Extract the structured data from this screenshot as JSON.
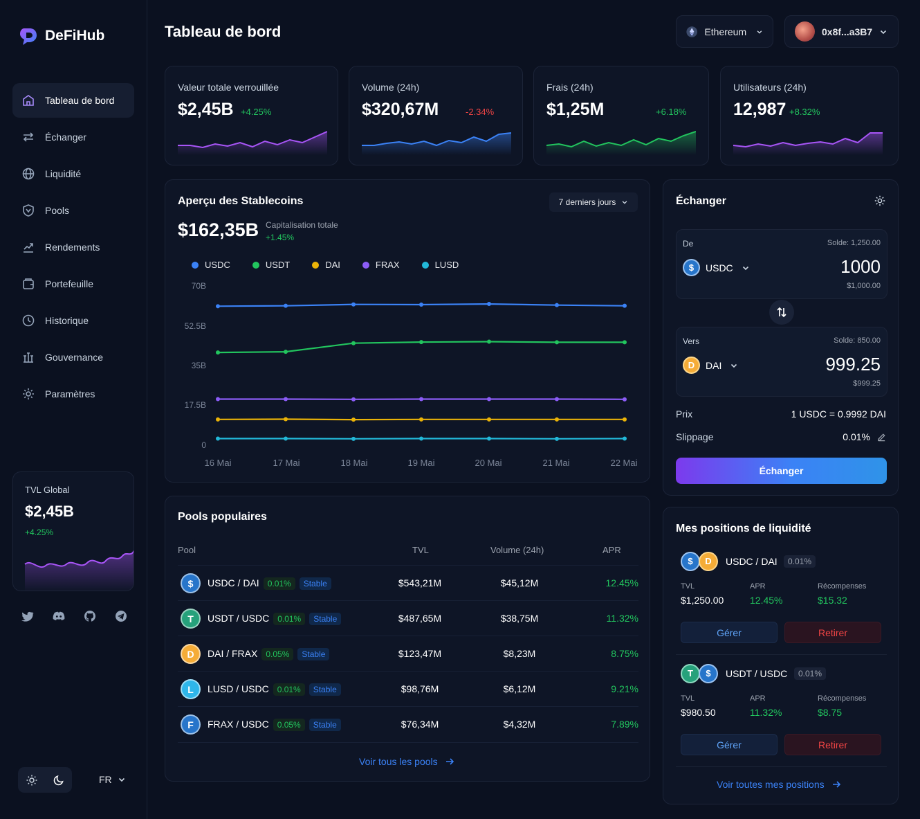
{
  "brand": {
    "name": "DeFiHub"
  },
  "page": {
    "title": "Tableau de bord"
  },
  "header": {
    "network": "Ethereum",
    "wallet": "0x8f...a3B7"
  },
  "nav": {
    "items": [
      {
        "label": "Tableau de bord",
        "icon": "home-icon",
        "active": true
      },
      {
        "label": "Échanger",
        "icon": "swap-arrows-icon"
      },
      {
        "label": "Liquidité",
        "icon": "globe-icon"
      },
      {
        "label": "Pools",
        "icon": "pool-shield-icon"
      },
      {
        "label": "Rendements",
        "icon": "yield-icon"
      },
      {
        "label": "Portefeuille",
        "icon": "wallet-icon"
      },
      {
        "label": "Historique",
        "icon": "clock-icon"
      },
      {
        "label": "Gouvernance",
        "icon": "governance-icon"
      },
      {
        "label": "Paramètres",
        "icon": "gear-icon"
      }
    ]
  },
  "tvl_global": {
    "label": "TVL Global",
    "value": "$2,45B",
    "change": "+4.25%"
  },
  "footer": {
    "lang": "FR"
  },
  "stats": [
    {
      "label": "Valeur totale verrouillée",
      "value": "$2,45B",
      "change": "+4.25%",
      "color": "#a855f7"
    },
    {
      "label": "Volume (24h)",
      "value": "$320,67M",
      "change": "-2.34%",
      "color": "#3b82f6"
    },
    {
      "label": "Frais (24h)",
      "value": "$1,25M",
      "change": "+6.18%",
      "color": "#22c55e"
    },
    {
      "label": "Utilisateurs (24h)",
      "value": "12,987",
      "change": "+8.32%",
      "color": "#a855f7"
    }
  ],
  "stablecoins": {
    "title": "Aperçu des Stablecoins",
    "period": "7 derniers jours",
    "total": "$162,35B",
    "total_label": "Capitalisation totale",
    "total_change": "+1.45%"
  },
  "chart_data": {
    "type": "line",
    "x": [
      "16 Mai",
      "17 Mai",
      "18 Mai",
      "19 Mai",
      "20 Mai",
      "21 Mai",
      "22 Mai"
    ],
    "yticks": [
      "70B",
      "52.5B",
      "35B",
      "17.5B",
      "0"
    ],
    "ylim": [
      0,
      70
    ],
    "series": [
      {
        "name": "USDC",
        "color": "#3b82f6",
        "values": [
          61,
          61.2,
          61.8,
          61.7,
          62,
          61.5,
          61.2
        ]
      },
      {
        "name": "USDT",
        "color": "#22c55e",
        "values": [
          40.5,
          40.8,
          44.6,
          45.1,
          45.3,
          45,
          45
        ]
      },
      {
        "name": "DAI",
        "color": "#eab308",
        "values": [
          10.8,
          10.9,
          10.7,
          10.8,
          10.8,
          10.8,
          10.8
        ]
      },
      {
        "name": "FRAX",
        "color": "#8b5cf6",
        "values": [
          19.8,
          19.8,
          19.7,
          19.8,
          19.8,
          19.8,
          19.7
        ]
      },
      {
        "name": "LUSD",
        "color": "#22b8d8",
        "values": [
          2.3,
          2.3,
          2.2,
          2.3,
          2.3,
          2.2,
          2.3
        ]
      }
    ]
  },
  "pools": {
    "title": "Pools populaires",
    "headers": {
      "pool": "Pool",
      "tvl": "TVL",
      "volume": "Volume (24h)",
      "apr": "APR"
    },
    "rows": [
      {
        "pair": "USDC / DAI",
        "fee": "0.01%",
        "tag": "Stable",
        "tvl": "$543,21M",
        "volume": "$45,12M",
        "apr": "12.45%",
        "coin": "usdc-coin-icon",
        "color": "#2775ca",
        "glyph": "$"
      },
      {
        "pair": "USDT / USDC",
        "fee": "0.01%",
        "tag": "Stable",
        "tvl": "$487,65M",
        "volume": "$38,75M",
        "apr": "11.32%",
        "coin": "usdt-coin-icon",
        "color": "#26a17b",
        "glyph": "T"
      },
      {
        "pair": "DAI / FRAX",
        "fee": "0.05%",
        "tag": "Stable",
        "tvl": "$123,47M",
        "volume": "$8,23M",
        "apr": "8.75%",
        "coin": "dai-coin-icon",
        "color": "#f5ac37",
        "glyph": "D"
      },
      {
        "pair": "LUSD / USDC",
        "fee": "0.01%",
        "tag": "Stable",
        "tvl": "$98,76M",
        "volume": "$6,12M",
        "apr": "9.21%",
        "coin": "lusd-coin-icon",
        "color": "#2eb6ea",
        "glyph": "L"
      },
      {
        "pair": "FRAX / USDC",
        "fee": "0.05%",
        "tag": "Stable",
        "tvl": "$76,34M",
        "volume": "$4,32M",
        "apr": "7.89%",
        "coin": "frax-coin-icon",
        "color": "#2775ca",
        "glyph": "F"
      }
    ],
    "link": "Voir tous les pools"
  },
  "swap": {
    "title": "Échanger",
    "from": {
      "label": "De",
      "balance": "Solde: 1,250.00",
      "token": "USDC",
      "amount": "1000",
      "usd": "$1,000.00"
    },
    "to": {
      "label": "Vers",
      "balance": "Solde: 850.00",
      "token": "DAI",
      "amount": "999.25",
      "usd": "$999.25"
    },
    "price_label": "Prix",
    "price": "1 USDC = 0.9992 DAI",
    "slippage_label": "Slippage",
    "slippage": "0.01%",
    "button": "Échanger"
  },
  "positions": {
    "title": "Mes positions de liquidité",
    "items": [
      {
        "pair": "USDC / DAI",
        "fee": "0.01%",
        "tvl_label": "TVL",
        "tvl": "$1,250.00",
        "apr_label": "APR",
        "apr": "12.45%",
        "rewards_label": "Récompenses",
        "rewards": "$15.32",
        "manage": "Gérer",
        "withdraw": "Retirer"
      },
      {
        "pair": "USDT / USDC",
        "fee": "0.01%",
        "tvl_label": "TVL",
        "tvl": "$980.50",
        "apr_label": "APR",
        "apr": "11.32%",
        "rewards_label": "Récompenses",
        "rewards": "$8.75",
        "manage": "Gérer",
        "withdraw": "Retirer"
      }
    ],
    "link": "Voir toutes mes positions"
  }
}
